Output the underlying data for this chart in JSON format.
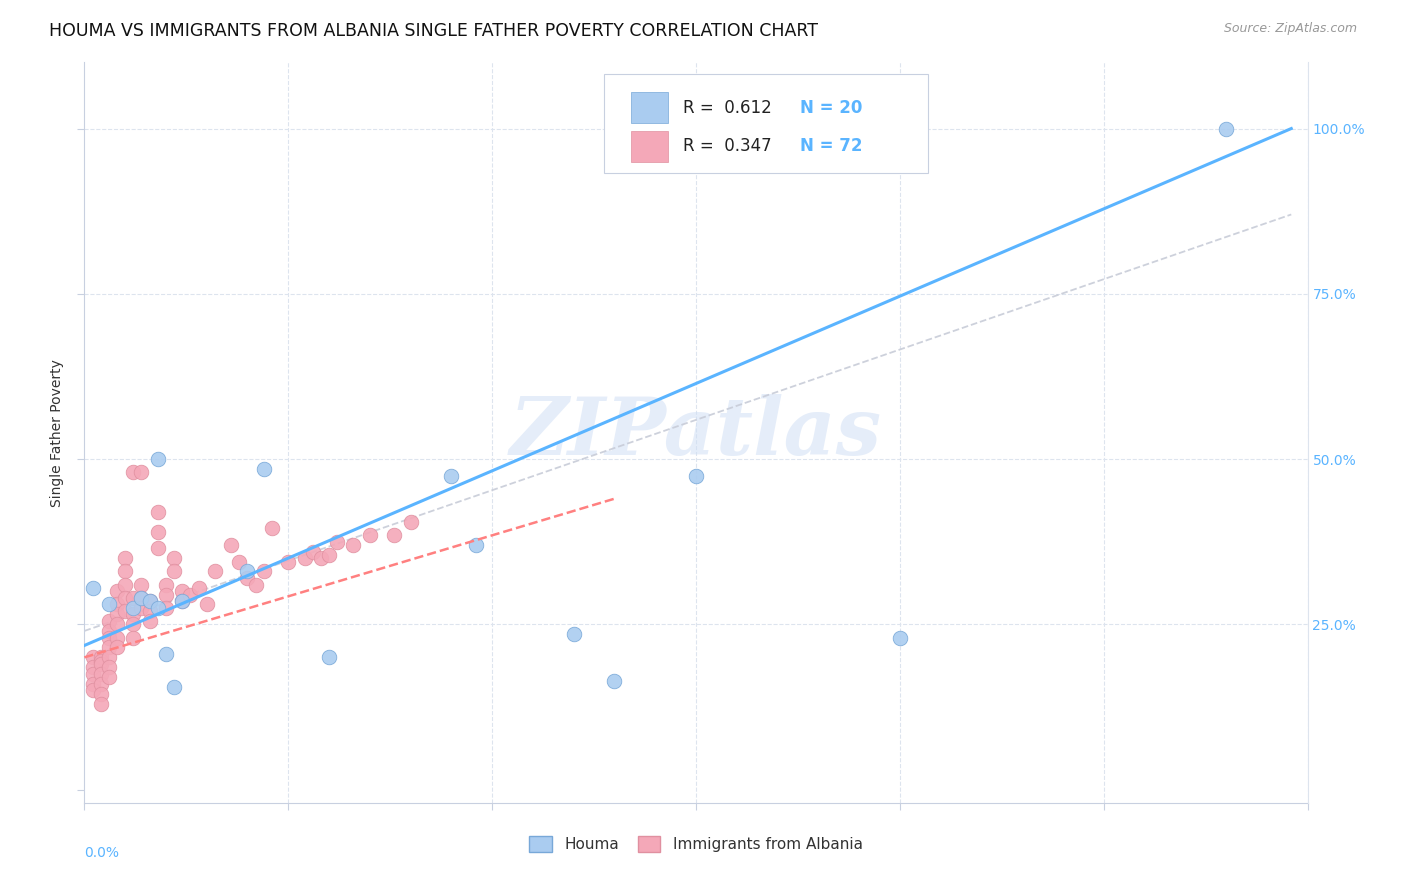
{
  "title": "HOUMA VS IMMIGRANTS FROM ALBANIA SINGLE FATHER POVERTY CORRELATION CHART",
  "source": "Source: ZipAtlas.com",
  "ylabel": "Single Father Poverty",
  "yticks": [
    0.0,
    0.25,
    0.5,
    0.75,
    1.0
  ],
  "ytick_labels": [
    "",
    "25.0%",
    "50.0%",
    "75.0%",
    "100.0%"
  ],
  "xlim": [
    0.0,
    0.15
  ],
  "ylim": [
    -0.02,
    1.1
  ],
  "houma_color": "#aaccf0",
  "albania_color": "#f4a8b8",
  "trend_blue": "#5ab4ff",
  "trend_pink": "#ff8080",
  "ref_color": "#c8ccd8",
  "watermark_color": "#d0dff5",
  "houma_x": [
    0.001,
    0.003,
    0.006,
    0.007,
    0.008,
    0.009,
    0.009,
    0.01,
    0.011,
    0.012,
    0.02,
    0.022,
    0.03,
    0.045,
    0.048,
    0.06,
    0.065,
    0.075,
    0.1,
    0.14
  ],
  "houma_y": [
    0.305,
    0.28,
    0.275,
    0.29,
    0.285,
    0.5,
    0.275,
    0.205,
    0.155,
    0.285,
    0.33,
    0.485,
    0.2,
    0.475,
    0.37,
    0.235,
    0.165,
    0.475,
    0.23,
    1.0
  ],
  "albania_x": [
    0.001,
    0.001,
    0.001,
    0.001,
    0.001,
    0.002,
    0.002,
    0.002,
    0.002,
    0.002,
    0.002,
    0.002,
    0.003,
    0.003,
    0.003,
    0.003,
    0.003,
    0.003,
    0.003,
    0.004,
    0.004,
    0.004,
    0.004,
    0.004,
    0.004,
    0.005,
    0.005,
    0.005,
    0.005,
    0.005,
    0.006,
    0.006,
    0.006,
    0.006,
    0.006,
    0.007,
    0.007,
    0.007,
    0.007,
    0.008,
    0.008,
    0.008,
    0.009,
    0.009,
    0.009,
    0.01,
    0.01,
    0.01,
    0.011,
    0.011,
    0.012,
    0.012,
    0.013,
    0.014,
    0.015,
    0.016,
    0.018,
    0.019,
    0.02,
    0.021,
    0.022,
    0.023,
    0.025,
    0.027,
    0.028,
    0.029,
    0.03,
    0.031,
    0.033,
    0.035,
    0.038,
    0.04
  ],
  "albania_y": [
    0.2,
    0.185,
    0.175,
    0.16,
    0.15,
    0.2,
    0.195,
    0.19,
    0.175,
    0.16,
    0.145,
    0.13,
    0.255,
    0.24,
    0.23,
    0.215,
    0.2,
    0.185,
    0.17,
    0.3,
    0.28,
    0.265,
    0.25,
    0.23,
    0.215,
    0.35,
    0.33,
    0.31,
    0.29,
    0.27,
    0.48,
    0.29,
    0.265,
    0.25,
    0.23,
    0.48,
    0.31,
    0.29,
    0.275,
    0.285,
    0.27,
    0.255,
    0.42,
    0.39,
    0.365,
    0.31,
    0.295,
    0.275,
    0.35,
    0.33,
    0.3,
    0.285,
    0.295,
    0.305,
    0.28,
    0.33,
    0.37,
    0.345,
    0.32,
    0.31,
    0.33,
    0.395,
    0.345,
    0.35,
    0.36,
    0.35,
    0.355,
    0.375,
    0.37,
    0.385,
    0.385,
    0.405
  ],
  "blue_line_x": [
    0.0,
    0.148
  ],
  "blue_line_y": [
    0.218,
    1.0
  ],
  "pink_line_x": [
    0.0,
    0.065
  ],
  "pink_line_y": [
    0.2,
    0.44
  ],
  "ref_line_x": [
    0.0,
    0.148
  ],
  "ref_line_y": [
    0.24,
    0.87
  ],
  "background_color": "#ffffff",
  "grid_color": "#dde4ee",
  "title_fontsize": 12.5,
  "axis_label_fontsize": 10,
  "tick_fontsize": 10
}
